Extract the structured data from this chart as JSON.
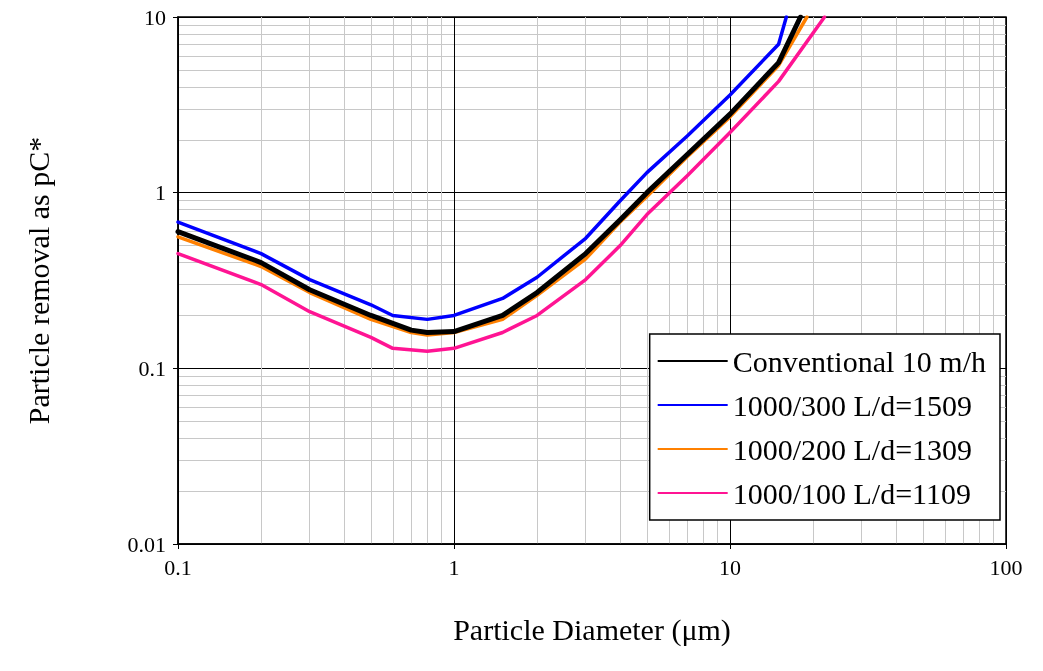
{
  "chart_data": {
    "type": "line",
    "xlabel": "Particle Diameter (μm)",
    "ylabel": "Particle removal as pC*",
    "log": "xy",
    "grid": true,
    "legend": "bottom right",
    "marker": "none",
    "line_style": "solid",
    "xlim": [
      0.1,
      100
    ],
    "xticks": [
      0.1,
      1,
      10,
      100
    ],
    "ylim": [
      0.01,
      10
    ],
    "yticks": [
      0.01,
      0.1,
      1,
      10
    ],
    "series": [
      {
        "name": "Conventional 10 m/h",
        "color": "#000000",
        "x": [
          0.1,
          0.2,
          0.3,
          0.5,
          0.7,
          0.8,
          1,
          1.5,
          2,
          3,
          4,
          5,
          7,
          10,
          15,
          18
        ],
        "values": [
          0.6,
          0.4,
          0.28,
          0.2,
          0.165,
          0.16,
          0.162,
          0.2,
          0.27,
          0.45,
          0.7,
          1.0,
          1.65,
          2.8,
          5.5,
          10
        ]
      },
      {
        "name": "1000/300 L/d=1509",
        "color": "#0000ff",
        "x": [
          0.1,
          0.2,
          0.3,
          0.5,
          0.6,
          0.8,
          1,
          1.5,
          2,
          3,
          4,
          5,
          7,
          10,
          15,
          16
        ],
        "values": [
          0.68,
          0.45,
          0.32,
          0.23,
          0.2,
          0.19,
          0.2,
          0.25,
          0.33,
          0.55,
          0.9,
          1.3,
          2.1,
          3.6,
          7,
          10
        ]
      },
      {
        "name": "1000/200 L/d=1309",
        "color": "#ff8000",
        "x": [
          0.1,
          0.2,
          0.3,
          0.5,
          0.7,
          0.8,
          1,
          1.5,
          2,
          3,
          4,
          5,
          7,
          10,
          15,
          19
        ],
        "values": [
          0.56,
          0.38,
          0.27,
          0.19,
          0.16,
          0.155,
          0.16,
          0.19,
          0.26,
          0.42,
          0.68,
          0.95,
          1.6,
          2.7,
          5.3,
          10
        ]
      },
      {
        "name": "1000/100 L/d=1109",
        "color": "#ff1493",
        "x": [
          0.1,
          0.2,
          0.3,
          0.5,
          0.6,
          0.8,
          1,
          1.5,
          2,
          3,
          4,
          5,
          7,
          10,
          15,
          22
        ],
        "values": [
          0.45,
          0.3,
          0.21,
          0.15,
          0.13,
          0.125,
          0.13,
          0.16,
          0.2,
          0.32,
          0.5,
          0.75,
          1.25,
          2.2,
          4.3,
          10
        ]
      }
    ]
  }
}
